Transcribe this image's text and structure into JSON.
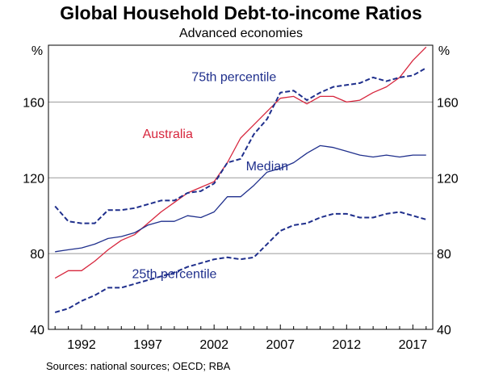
{
  "chart_data": {
    "type": "line",
    "title": "Global Household Debt-to-income Ratios",
    "subtitle": "Advanced economies",
    "source": "Sources:   national sources; OECD; RBA",
    "y_unit_left": "%",
    "y_unit_right": "%",
    "ylim": [
      40,
      190
    ],
    "yticks": [
      40,
      80,
      120,
      160
    ],
    "xlim": [
      1989.5,
      2018.5
    ],
    "xticks": [
      1992,
      1997,
      2002,
      2007,
      2012,
      2017
    ],
    "grid": true,
    "series": [
      {
        "name": "Australia",
        "color": "#d7263d",
        "dash": "solid",
        "label_pos": [
          1998.5,
          141
        ],
        "x": [
          1990,
          1991,
          1992,
          1993,
          1994,
          1995,
          1996,
          1997,
          1998,
          1999,
          2000,
          2001,
          2002,
          2003,
          2004,
          2005,
          2006,
          2007,
          2008,
          2009,
          2010,
          2011,
          2012,
          2013,
          2014,
          2015,
          2016,
          2017,
          2018
        ],
        "y": [
          67,
          71,
          71,
          76,
          82,
          87,
          90,
          96,
          102,
          107,
          112,
          115,
          118,
          128,
          141,
          148,
          155,
          162,
          163,
          159,
          163,
          163,
          160,
          161,
          165,
          168,
          173,
          182,
          189
        ]
      },
      {
        "name": "75th percentile",
        "color": "#1f2f8c",
        "dash": "dashed",
        "label_pos": [
          2003.5,
          171
        ],
        "x": [
          1990,
          1991,
          1992,
          1993,
          1994,
          1995,
          1996,
          1997,
          1998,
          1999,
          2000,
          2001,
          2002,
          2003,
          2004,
          2005,
          2006,
          2007,
          2008,
          2009,
          2010,
          2011,
          2012,
          2013,
          2014,
          2015,
          2016,
          2017,
          2018
        ],
        "y": [
          105,
          97,
          96,
          96,
          103,
          103,
          104,
          106,
          108,
          108,
          112,
          113,
          117,
          128,
          130,
          143,
          151,
          165,
          166,
          161,
          165,
          168,
          169,
          170,
          173,
          171,
          173,
          174,
          178
        ]
      },
      {
        "name": "Median",
        "color": "#1f2f8c",
        "dash": "solid",
        "label_pos": [
          2006,
          124
        ],
        "x": [
          1990,
          1991,
          1992,
          1993,
          1994,
          1995,
          1996,
          1997,
          1998,
          1999,
          2000,
          2001,
          2002,
          2003,
          2004,
          2005,
          2006,
          2007,
          2008,
          2009,
          2010,
          2011,
          2012,
          2013,
          2014,
          2015,
          2016,
          2017,
          2018
        ],
        "y": [
          81,
          82,
          83,
          85,
          88,
          89,
          91,
          95,
          97,
          97,
          100,
          99,
          102,
          110,
          110,
          116,
          123,
          125,
          128,
          133,
          137,
          136,
          134,
          132,
          131,
          132,
          131,
          132,
          132
        ]
      },
      {
        "name": "25th percentile",
        "color": "#1f2f8c",
        "dash": "dashed",
        "label_pos": [
          1999,
          67
        ],
        "x": [
          1990,
          1991,
          1992,
          1993,
          1994,
          1995,
          1996,
          1997,
          1998,
          1999,
          2000,
          2001,
          2002,
          2003,
          2004,
          2005,
          2006,
          2007,
          2008,
          2009,
          2010,
          2011,
          2012,
          2013,
          2014,
          2015,
          2016,
          2017,
          2018
        ],
        "y": [
          49,
          51,
          55,
          58,
          62,
          62,
          64,
          66,
          68,
          70,
          73,
          75,
          77,
          78,
          77,
          78,
          85,
          92,
          95,
          96,
          99,
          101,
          101,
          99,
          99,
          101,
          102,
          100,
          98
        ]
      }
    ]
  }
}
